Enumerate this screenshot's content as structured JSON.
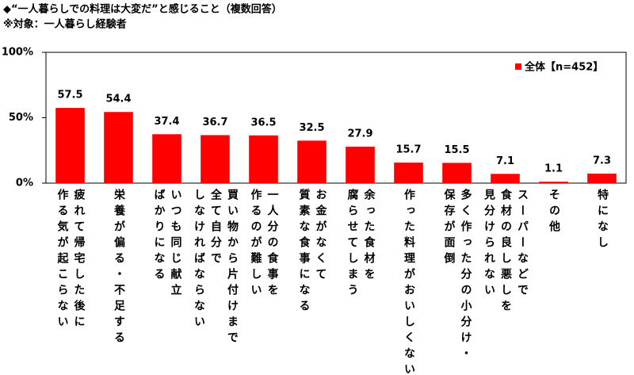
{
  "chart_data": {
    "type": "bar",
    "title": "◆“一人暮らしでの料理は大変だ”と感じること（複数回答）",
    "subtitle": "※対象：一人暮らし経験者",
    "categories": [
      [
        "疲れて帰宅した後に",
        "作る気が起こらない"
      ],
      [
        "栄養が偏る・不足する"
      ],
      [
        "いつも同じ献立",
        "ばかりになる"
      ],
      [
        "買い物から片付けまで",
        "全て自分で",
        "しなければならない"
      ],
      [
        "一人分の食事を",
        "作るのが難しい"
      ],
      [
        "お金がなくて",
        "質素な食事になる"
      ],
      [
        "余った食材を",
        "腐らせてしまう"
      ],
      [
        "作った料理がおいしくない"
      ],
      [
        "多く作った分の小分け・",
        "保存が面倒"
      ],
      [
        "スーパーなどで",
        "食材の良し悪しを",
        "見分けられない"
      ],
      [
        "その他"
      ],
      [
        "特になし"
      ]
    ],
    "series": [
      {
        "name": "全体【n=452】",
        "color": "#ff0000",
        "values": [
          57.5,
          54.4,
          37.4,
          36.7,
          36.5,
          32.5,
          27.9,
          15.7,
          15.5,
          7.1,
          1.1,
          7.3
        ]
      }
    ],
    "ylim": [
      0,
      100
    ],
    "yticks": [
      {
        "value": 0,
        "label": "0%"
      },
      {
        "value": 50,
        "label": "50%"
      },
      {
        "value": 100,
        "label": "100%"
      }
    ],
    "legend": "upper right"
  }
}
